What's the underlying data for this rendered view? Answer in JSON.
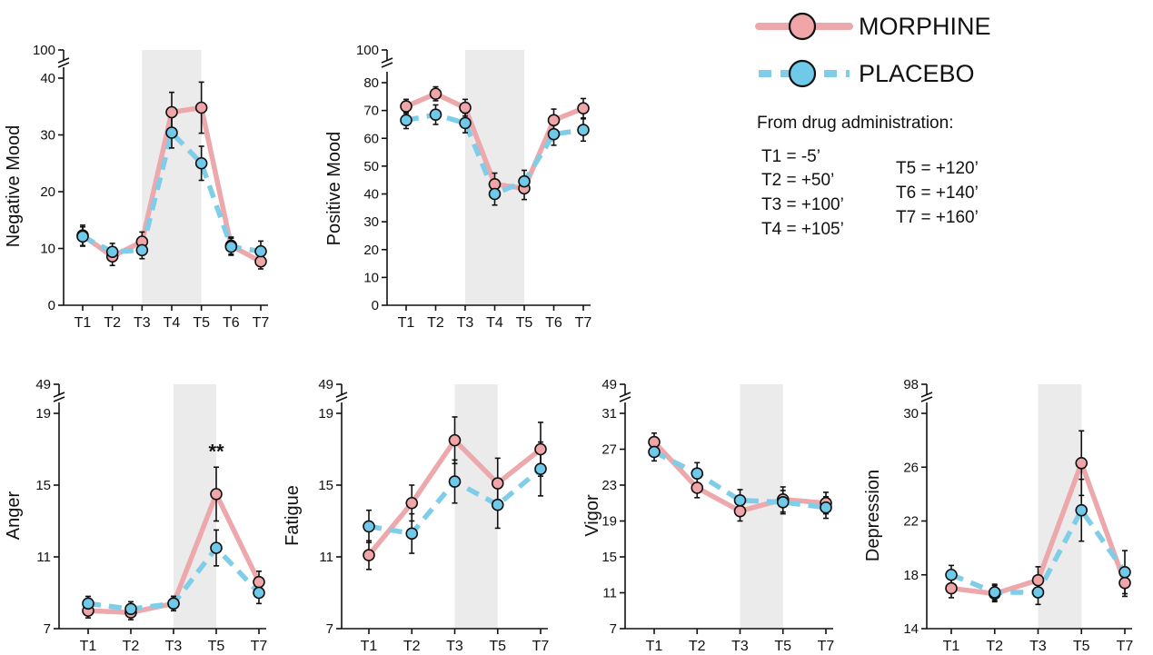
{
  "legend": {
    "morphine_label": "MORPHINE",
    "placebo_label": "PLACEBO",
    "morphine_color": "#eda8ab",
    "morphine_marker": "#f0a6a8",
    "placebo_color": "#7fcde9",
    "placebo_marker": "#6ecae8",
    "shade_color": "#ebebeb"
  },
  "timing": {
    "heading": "From drug administration:",
    "items": [
      "T1 = -5’",
      "T2 = +50’",
      "T3 = +100’",
      "T4 = +105’",
      "T5 = +120’",
      "T6 = +140’",
      "T7 = +160’"
    ]
  },
  "chart_data": [
    {
      "type": "line",
      "ylabel": "Negative Mood",
      "categories": [
        "T1",
        "T2",
        "T3",
        "T4",
        "T5",
        "T6",
        "T7"
      ],
      "ylim": [
        0,
        40
      ],
      "yticks": [
        0,
        10,
        20,
        30,
        40
      ],
      "axis_break_label": "100",
      "shaded_between": [
        "T3",
        "T5"
      ],
      "series": [
        {
          "name": "MORPHINE",
          "values": [
            12.3,
            8.6,
            11.2,
            34.0,
            34.8,
            10.5,
            7.7
          ],
          "errors": [
            1.8,
            1.6,
            1.7,
            3.5,
            4.5,
            1.5,
            1.3
          ]
        },
        {
          "name": "PLACEBO",
          "values": [
            12.1,
            9.4,
            9.7,
            30.4,
            25.0,
            10.3,
            9.5
          ],
          "errors": [
            1.7,
            1.5,
            1.5,
            2.7,
            3.0,
            1.5,
            1.8
          ]
        }
      ],
      "annotations": []
    },
    {
      "type": "line",
      "ylabel": "Positive Mood",
      "categories": [
        "T1",
        "T2",
        "T3",
        "T4",
        "T5",
        "T6",
        "T7"
      ],
      "ylim": [
        0,
        80
      ],
      "yticks": [
        0,
        10,
        20,
        30,
        40,
        50,
        60,
        70,
        80
      ],
      "axis_break_label": "100",
      "shaded_between": [
        "T3",
        "T5"
      ],
      "series": [
        {
          "name": "MORPHINE",
          "values": [
            71.5,
            76.0,
            71.0,
            43.5,
            42.0,
            66.5,
            70.8
          ],
          "errors": [
            2.5,
            2.5,
            3.0,
            4.0,
            4.0,
            4.0,
            3.5
          ]
        },
        {
          "name": "PLACEBO",
          "values": [
            66.5,
            68.5,
            65.5,
            40.0,
            44.5,
            61.5,
            63.0
          ],
          "errors": [
            3.0,
            3.5,
            3.5,
            4.0,
            4.0,
            4.0,
            4.0
          ]
        }
      ],
      "annotations": []
    },
    {
      "type": "line",
      "ylabel": "Anger",
      "categories": [
        "T1",
        "T2",
        "T3",
        "T5",
        "T7"
      ],
      "ylim": [
        7,
        19
      ],
      "yticks": [
        7,
        11,
        15,
        19
      ],
      "axis_break_label": "49",
      "shaded_between": [
        "T3",
        "T5"
      ],
      "series": [
        {
          "name": "MORPHINE",
          "values": [
            8.0,
            7.9,
            8.4,
            14.5,
            9.6
          ],
          "errors": [
            0.4,
            0.4,
            0.4,
            1.5,
            0.6
          ]
        },
        {
          "name": "PLACEBO",
          "values": [
            8.4,
            8.1,
            8.4,
            11.5,
            9.0
          ],
          "errors": [
            0.4,
            0.4,
            0.4,
            1.0,
            0.6
          ]
        }
      ],
      "annotations": [
        {
          "text": "**",
          "at": "T5"
        }
      ]
    },
    {
      "type": "line",
      "ylabel": "Fatigue",
      "categories": [
        "T1",
        "T2",
        "T3",
        "T5",
        "T7"
      ],
      "ylim": [
        7,
        19
      ],
      "yticks": [
        7,
        11,
        15,
        19
      ],
      "axis_break_label": "49",
      "shaded_between": [
        "T3",
        "T5"
      ],
      "series": [
        {
          "name": "MORPHINE",
          "values": [
            11.1,
            14.0,
            17.5,
            15.1,
            17.0
          ],
          "errors": [
            0.8,
            1.0,
            1.3,
            1.4,
            1.5
          ]
        },
        {
          "name": "PLACEBO",
          "values": [
            12.7,
            12.3,
            15.2,
            13.9,
            15.9
          ],
          "errors": [
            0.9,
            1.1,
            1.2,
            1.3,
            1.5
          ]
        }
      ],
      "annotations": []
    },
    {
      "type": "line",
      "ylabel": "Vigor",
      "categories": [
        "T1",
        "T2",
        "T3",
        "T5",
        "T7"
      ],
      "ylim": [
        7,
        31
      ],
      "yticks": [
        7,
        11,
        15,
        19,
        23,
        27,
        31
      ],
      "axis_break_label": "49",
      "shaded_between": [
        "T3",
        "T5"
      ],
      "series": [
        {
          "name": "MORPHINE",
          "values": [
            27.8,
            22.7,
            20.1,
            21.4,
            21.0
          ],
          "errors": [
            1.0,
            1.1,
            1.1,
            1.4,
            1.2
          ]
        },
        {
          "name": "PLACEBO",
          "values": [
            26.7,
            24.3,
            21.3,
            21.1,
            20.5
          ],
          "errors": [
            1.0,
            1.2,
            1.2,
            1.3,
            1.2
          ]
        }
      ],
      "annotations": []
    },
    {
      "type": "line",
      "ylabel": "Depression",
      "categories": [
        "T1",
        "T2",
        "T3",
        "T5",
        "T7"
      ],
      "ylim": [
        14,
        30
      ],
      "yticks": [
        14,
        18,
        22,
        26,
        30
      ],
      "axis_break_label": "98",
      "shaded_between": [
        "T3",
        "T5"
      ],
      "series": [
        {
          "name": "MORPHINE",
          "values": [
            17.0,
            16.6,
            17.6,
            26.3,
            17.4
          ],
          "errors": [
            0.7,
            0.6,
            1.0,
            2.4,
            1.0
          ]
        },
        {
          "name": "PLACEBO",
          "values": [
            18.0,
            16.7,
            16.7,
            22.8,
            18.2
          ],
          "errors": [
            0.7,
            0.6,
            0.9,
            2.3,
            1.6
          ]
        }
      ],
      "annotations": []
    }
  ]
}
